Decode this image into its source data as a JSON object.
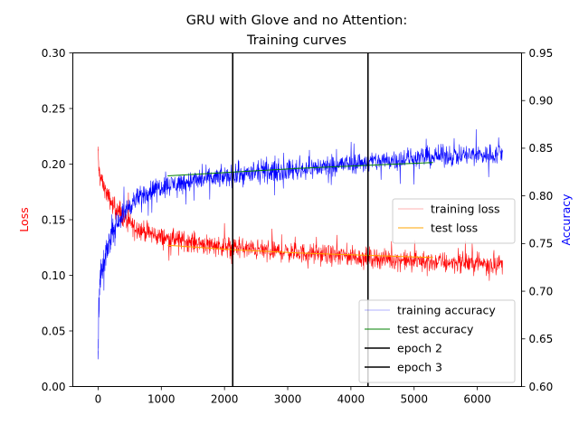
{
  "chart_data": {
    "type": "line",
    "title_line1": "GRU with Glove and no Attention:",
    "title_line2": "Training curves",
    "xlabel": "",
    "ylabel_left": "Loss",
    "ylabel_right": "Accuracy",
    "xlim": [
      -400,
      6700
    ],
    "ylim_left": [
      0,
      0.3
    ],
    "ylim_right": [
      0.6,
      0.95
    ],
    "x_ticks": [
      0,
      1000,
      2000,
      3000,
      4000,
      5000,
      6000
    ],
    "x_tick_labels": [
      "0",
      "1000",
      "2000",
      "3000",
      "4000",
      "5000",
      "6000"
    ],
    "y_left_ticks": [
      0,
      0.05,
      0.1,
      0.15,
      0.2,
      0.25,
      0.3
    ],
    "y_left_tick_labels": [
      "0.00",
      "0.05",
      "0.10",
      "0.15",
      "0.20",
      "0.25",
      "0.30"
    ],
    "y_right_ticks": [
      0.6,
      0.65,
      0.7,
      0.75,
      0.8,
      0.85,
      0.9,
      0.95
    ],
    "y_right_tick_labels": [
      "0.60",
      "0.65",
      "0.70",
      "0.75",
      "0.80",
      "0.85",
      "0.90",
      "0.95"
    ],
    "grid": false,
    "colors": {
      "training_loss": "#ff0000",
      "test_loss": "#ffa500",
      "training_accuracy": "#0000ff",
      "test_accuracy": "#008000",
      "epoch_lines": "#000000",
      "loss_axis_label": "#ff0000",
      "accuracy_axis_label": "#0000ff"
    },
    "series": [
      {
        "name": "training loss",
        "axis": "left",
        "x": [
          0,
          10,
          30,
          60,
          100,
          150,
          200,
          300,
          400,
          500,
          600,
          800,
          1000,
          1500,
          2000,
          2500,
          3000,
          3500,
          4000,
          4500,
          5000,
          5500,
          6000,
          6400
        ],
        "values": [
          0.215,
          0.195,
          0.19,
          0.185,
          0.178,
          0.172,
          0.166,
          0.158,
          0.152,
          0.147,
          0.143,
          0.138,
          0.134,
          0.13,
          0.126,
          0.123,
          0.121,
          0.119,
          0.117,
          0.115,
          0.113,
          0.112,
          0.111,
          0.11
        ],
        "band": [
          0.01,
          0.01,
          0.01,
          0.01,
          0.01,
          0.012,
          0.012,
          0.013,
          0.013,
          0.013,
          0.013,
          0.013,
          0.013,
          0.013,
          0.013,
          0.013,
          0.013,
          0.013,
          0.013,
          0.013,
          0.013,
          0.013,
          0.013,
          0.013
        ]
      },
      {
        "name": "test loss",
        "axis": "left",
        "x": [
          1100,
          2150,
          3200,
          4250,
          5300
        ],
        "values": [
          0.127,
          0.123,
          0.12,
          0.118,
          0.116
        ]
      },
      {
        "name": "training accuracy",
        "axis": "right",
        "x": [
          0,
          10,
          30,
          60,
          100,
          150,
          200,
          300,
          400,
          500,
          600,
          800,
          1000,
          1500,
          2000,
          2500,
          3000,
          3500,
          4000,
          4500,
          5000,
          5500,
          6000,
          6400
        ],
        "values": [
          0.62,
          0.69,
          0.71,
          0.72,
          0.73,
          0.745,
          0.758,
          0.772,
          0.782,
          0.79,
          0.796,
          0.805,
          0.81,
          0.816,
          0.82,
          0.824,
          0.827,
          0.83,
          0.834,
          0.837,
          0.84,
          0.842,
          0.843,
          0.844
        ],
        "band": [
          0.03,
          0.03,
          0.025,
          0.022,
          0.02,
          0.018,
          0.017,
          0.016,
          0.016,
          0.016,
          0.016,
          0.016,
          0.016,
          0.016,
          0.016,
          0.016,
          0.016,
          0.016,
          0.016,
          0.016,
          0.016,
          0.016,
          0.016,
          0.016
        ]
      },
      {
        "name": "test accuracy",
        "axis": "right",
        "x": [
          1100,
          2150,
          3200,
          4250,
          5300
        ],
        "values": [
          0.821,
          0.825,
          0.829,
          0.832,
          0.835
        ]
      }
    ],
    "vertical_lines": [
      {
        "name": "epoch 2",
        "x": 2130
      },
      {
        "name": "epoch 3",
        "x": 4270
      }
    ],
    "legend_upper": {
      "placement": "center-right",
      "entries": [
        "training loss",
        "test loss"
      ]
    },
    "legend_lower": {
      "placement": "lower-right",
      "entries": [
        "training accuracy",
        "test accuracy",
        "epoch 2",
        "epoch 3"
      ]
    }
  }
}
